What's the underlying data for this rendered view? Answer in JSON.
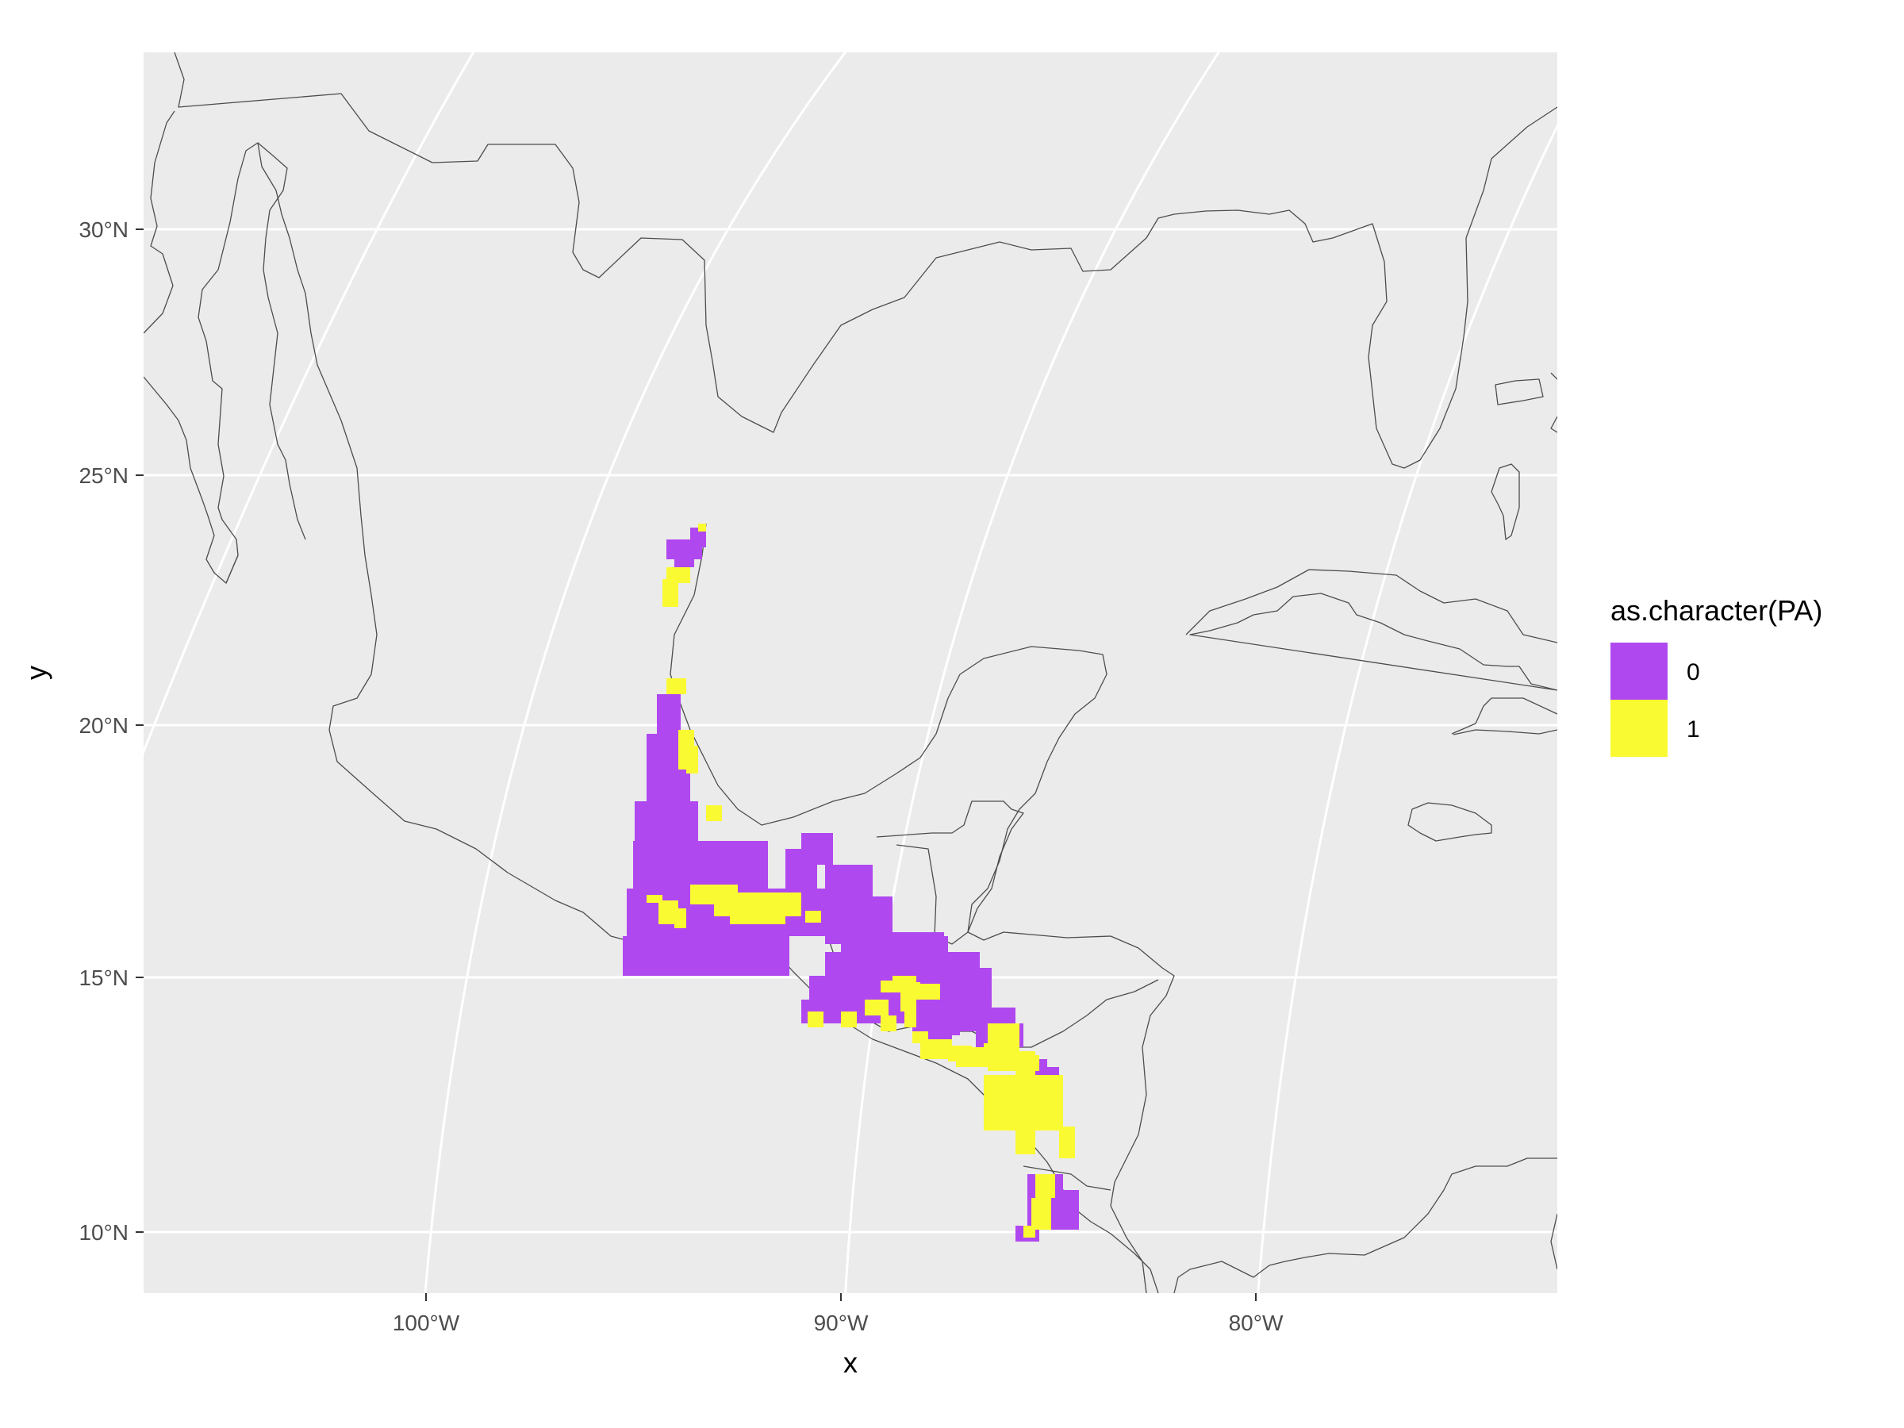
{
  "chart_data": {
    "type": "map",
    "xlabel": "x",
    "ylabel": "y",
    "x_ticks": [
      "100°W",
      "90°W",
      "80°W"
    ],
    "y_ticks": [
      "30°N",
      "25°N",
      "20°N",
      "15°N",
      "10°N"
    ],
    "lon_range": [
      -106.8,
      -72.8
    ],
    "lat_range": [
      8.8,
      33.5
    ],
    "panel_background": "#ebebeb",
    "grid_color": "#ffffff",
    "coastline_color": "#4d4d4d",
    "legend": {
      "title": "as.character(PA)",
      "position": "right",
      "entries": [
        {
          "label": "0",
          "color": "#b048f0"
        },
        {
          "label": "1",
          "color": "#fafa32"
        }
      ]
    }
  }
}
